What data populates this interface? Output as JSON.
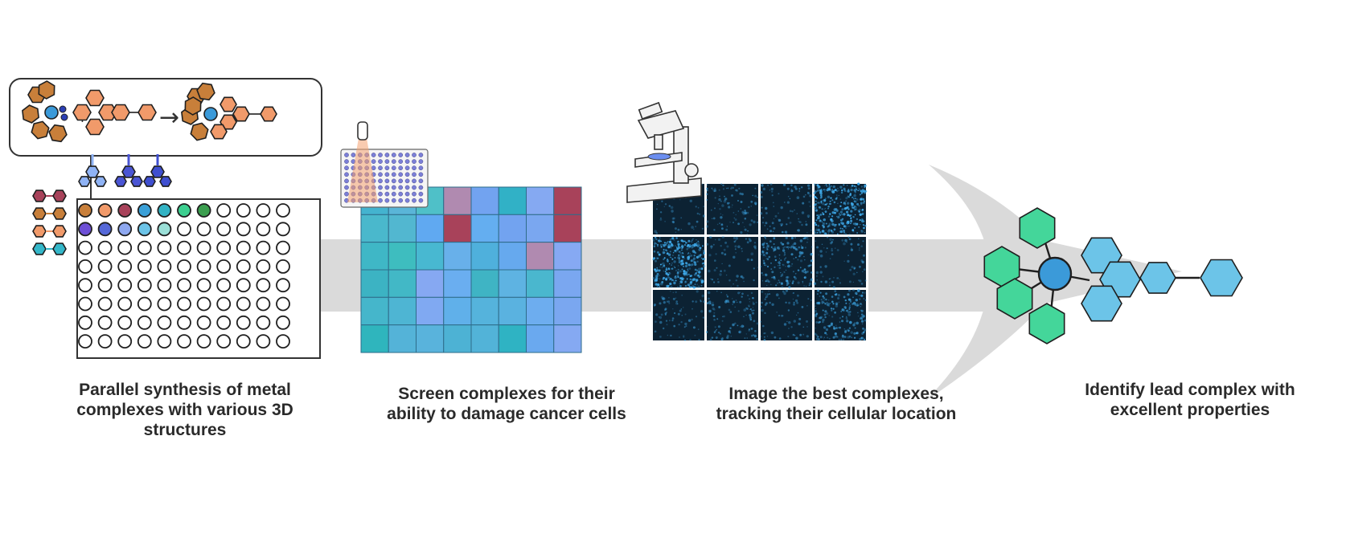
{
  "captions": {
    "step1": [
      "Parallel synthesis of metal",
      "complexes with various 3D",
      "structures"
    ],
    "step2": [
      "Screen complexes for their",
      "ability to damage cancer cells"
    ],
    "step3": [
      "Image the best complexes,",
      "tracking their cellular location"
    ],
    "step4": [
      "Identify lead complex with",
      "excellent properties"
    ]
  },
  "reaction": {
    "plus": "+",
    "arrow": "→"
  },
  "colors": {
    "arrow_band": "#d9d9d9",
    "metal": "#3b9ad9",
    "ligand_brown": "#c87f3a",
    "ligand_orange": "#f19a6a",
    "lead_green": "#44d69a",
    "lead_blue": "#6cc4e8",
    "screen_blue": "#72a3f0",
    "screen_teal": "#2fb3c3",
    "screen_red": "#a8425a",
    "micrograph_bg": "#0c2233"
  },
  "well_plate": {
    "rows": 8,
    "cols": 11,
    "filled_row1": [
      "#c87f3a",
      "#f19a6a",
      "#a8425a",
      "#3aa0d8",
      "#32b3c4",
      "#3ccf90",
      "#3b9e4f"
    ],
    "filled_row2": [
      "#6d4fd6",
      "#5568d8",
      "#8ea8f0",
      "#6cc4e8",
      "#9be0d8"
    ]
  },
  "legend_ligand_colors": [
    "#a8425a",
    "#c87f3a",
    "#f19a6a",
    "#34b7c9"
  ],
  "screen_heatmap": {
    "rows": 6,
    "cols": 8,
    "cells": [
      [
        "#44b3cf",
        "#5ab5d8",
        "#4fc0c8",
        "#b08ab0",
        "#72a3f0",
        "#31b1c6",
        "#85a9f2",
        "#a8425a"
      ],
      [
        "#4ab8cc",
        "#52b7d0",
        "#60a9f1",
        "#a8425a",
        "#64aef0",
        "#72a3f0",
        "#7aa7f0",
        "#a8425a"
      ],
      [
        "#3fb7c6",
        "#3ebdbf",
        "#48b8d1",
        "#68b0ea",
        "#4fb0dc",
        "#66a9ee",
        "#b08ab0",
        "#86a9f3"
      ],
      [
        "#3cb3c3",
        "#42b8c6",
        "#86a8f2",
        "#6aaef0",
        "#3fb4c4",
        "#5eb3e2",
        "#4ab7ce",
        "#7aa7f0"
      ],
      [
        "#45b6cb",
        "#4eb5d3",
        "#80a9f2",
        "#60b0ea",
        "#55b3dc",
        "#5ab2e0",
        "#6dadef",
        "#7aa7f0"
      ],
      [
        "#2fb5bd",
        "#54b3d8",
        "#59b3dc",
        "#4db2d4",
        "#52b3d8",
        "#2fb3c3",
        "#6aa9ef",
        "#85a9f2"
      ]
    ]
  },
  "micrographs": {
    "rows": 3,
    "cols": 4,
    "densities": [
      [
        0.06,
        0.18,
        0.14,
        0.9
      ],
      [
        0.95,
        0.08,
        0.45,
        0.12
      ],
      [
        0.12,
        0.22,
        0.1,
        0.5
      ]
    ]
  }
}
